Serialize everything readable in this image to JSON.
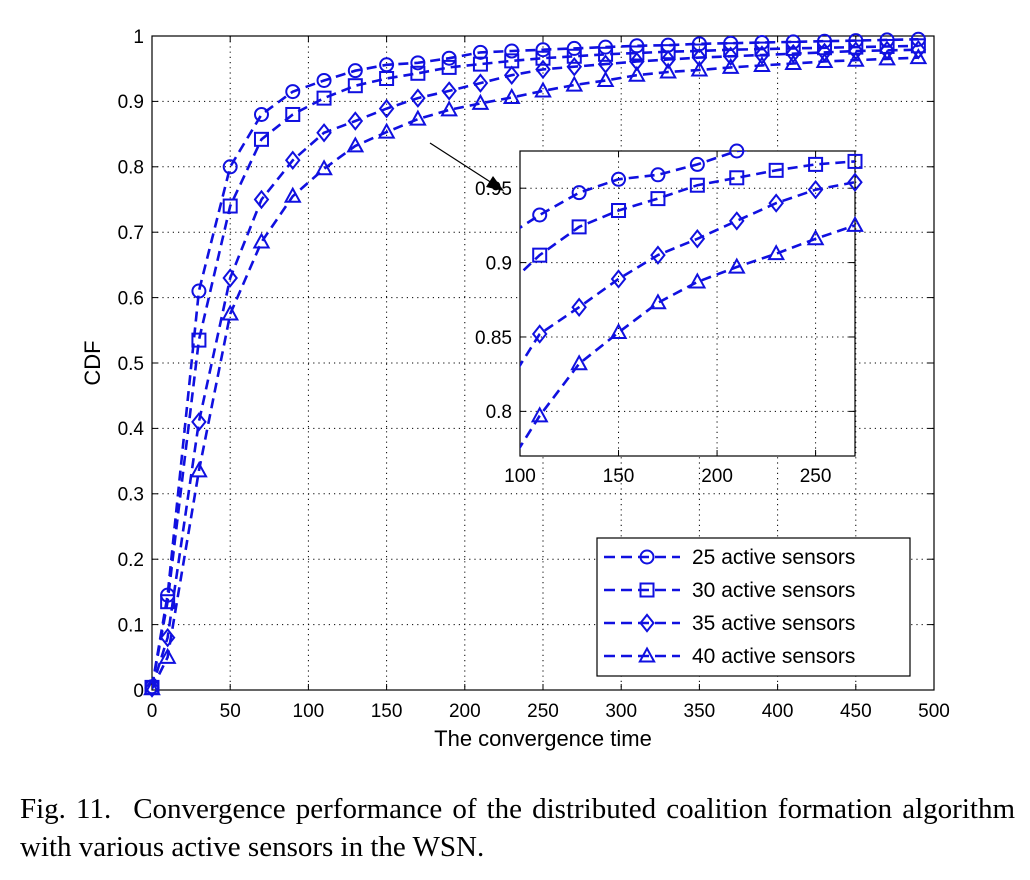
{
  "chart_data": [
    {
      "type": "line",
      "title": "",
      "xlabel": "The convergence time",
      "ylabel": "CDF",
      "xlim": [
        0,
        500
      ],
      "ylim": [
        0,
        1
      ],
      "xticks": [
        0,
        50,
        100,
        150,
        200,
        250,
        300,
        350,
        400,
        450,
        500
      ],
      "yticks": [
        0,
        0.1,
        0.2,
        0.3,
        0.4,
        0.5,
        0.6,
        0.7,
        0.8,
        0.9,
        1
      ],
      "xtick_labels": [
        "0",
        "50",
        "100",
        "150",
        "200",
        "250",
        "300",
        "350",
        "400",
        "450",
        "500"
      ],
      "ytick_labels": [
        "0",
        "0.1",
        "0.2",
        "0.3",
        "0.4",
        "0.5",
        "0.6",
        "0.7",
        "0.8",
        "0.9",
        "1"
      ],
      "grid": true,
      "legend_position": "bottom-right",
      "line_color": "#1010e0",
      "line_style": "dashed",
      "series": [
        {
          "name": "25 active sensors",
          "marker": "circle",
          "x": [
            0,
            10,
            30,
            50,
            70,
            90,
            110,
            130,
            150,
            170,
            190,
            210,
            230,
            250,
            270,
            290,
            310,
            330,
            350,
            370,
            390,
            410,
            430,
            450,
            470,
            490
          ],
          "y": [
            0.005,
            0.145,
            0.61,
            0.8,
            0.88,
            0.915,
            0.932,
            0.947,
            0.956,
            0.959,
            0.966,
            0.975,
            0.977,
            0.979,
            0.981,
            0.983,
            0.985,
            0.986,
            0.988,
            0.989,
            0.99,
            0.991,
            0.992,
            0.993,
            0.994,
            0.995
          ]
        },
        {
          "name": "30 active sensors",
          "marker": "square",
          "x": [
            0,
            10,
            30,
            50,
            70,
            90,
            110,
            130,
            150,
            170,
            190,
            210,
            230,
            250,
            270,
            290,
            310,
            330,
            350,
            370,
            390,
            410,
            430,
            450,
            470,
            490
          ],
          "y": [
            0.004,
            0.135,
            0.535,
            0.74,
            0.842,
            0.88,
            0.905,
            0.924,
            0.935,
            0.943,
            0.952,
            0.957,
            0.962,
            0.966,
            0.969,
            0.972,
            0.974,
            0.976,
            0.977,
            0.979,
            0.98,
            0.981,
            0.982,
            0.983,
            0.984,
            0.985
          ]
        },
        {
          "name": "35 active sensors",
          "marker": "diamond",
          "x": [
            0,
            10,
            30,
            50,
            70,
            90,
            110,
            130,
            150,
            170,
            190,
            210,
            230,
            250,
            270,
            290,
            310,
            330,
            350,
            370,
            390,
            410,
            430,
            450,
            470,
            490
          ],
          "y": [
            0.003,
            0.08,
            0.41,
            0.63,
            0.75,
            0.81,
            0.852,
            0.87,
            0.889,
            0.905,
            0.916,
            0.928,
            0.94,
            0.949,
            0.953,
            0.957,
            0.961,
            0.964,
            0.967,
            0.969,
            0.971,
            0.973,
            0.975,
            0.977,
            0.978,
            0.979
          ]
        },
        {
          "name": "40 active sensors",
          "marker": "triangle",
          "x": [
            0,
            10,
            30,
            50,
            70,
            90,
            110,
            130,
            150,
            170,
            190,
            210,
            230,
            250,
            270,
            290,
            310,
            330,
            350,
            370,
            390,
            410,
            430,
            450,
            470,
            490
          ],
          "y": [
            0.002,
            0.05,
            0.335,
            0.575,
            0.685,
            0.755,
            0.797,
            0.832,
            0.853,
            0.873,
            0.887,
            0.897,
            0.906,
            0.916,
            0.925,
            0.932,
            0.94,
            0.945,
            0.948,
            0.952,
            0.955,
            0.958,
            0.961,
            0.963,
            0.965,
            0.967
          ]
        }
      ]
    },
    {
      "type": "line",
      "title": "",
      "xlabel": "",
      "ylabel": "",
      "xlim": [
        100,
        270
      ],
      "ylim": [
        0.77,
        0.975
      ],
      "xticks": [
        100,
        150,
        200,
        250
      ],
      "yticks": [
        0.8,
        0.85,
        0.9,
        0.95
      ],
      "xtick_labels": [
        "100",
        "150",
        "200",
        "250"
      ],
      "ytick_labels": [
        "0.8",
        "0.85",
        "0.9",
        "0.95"
      ],
      "grid": true,
      "line_color": "#1010e0",
      "line_style": "dashed",
      "series": [
        {
          "name": "25 active sensors",
          "marker": "circle",
          "x": [
            90,
            110,
            130,
            150,
            170,
            190,
            210,
            230,
            250,
            270
          ],
          "y": [
            0.915,
            0.932,
            0.947,
            0.956,
            0.959,
            0.966,
            0.975,
            0.977,
            0.979,
            0.979
          ]
        },
        {
          "name": "30 active sensors",
          "marker": "square",
          "x": [
            90,
            110,
            130,
            150,
            170,
            190,
            210,
            230,
            250,
            270
          ],
          "y": [
            0.88,
            0.905,
            0.924,
            0.935,
            0.943,
            0.952,
            0.957,
            0.962,
            0.966,
            0.968
          ]
        },
        {
          "name": "35 active sensors",
          "marker": "diamond",
          "x": [
            90,
            110,
            130,
            150,
            170,
            190,
            210,
            230,
            250,
            270
          ],
          "y": [
            0.81,
            0.852,
            0.87,
            0.889,
            0.905,
            0.916,
            0.928,
            0.94,
            0.949,
            0.954
          ]
        },
        {
          "name": "40 active sensors",
          "marker": "triangle",
          "x": [
            90,
            110,
            130,
            150,
            170,
            190,
            210,
            230,
            250,
            270
          ],
          "y": [
            0.755,
            0.797,
            0.832,
            0.853,
            0.873,
            0.887,
            0.897,
            0.906,
            0.916,
            0.925
          ]
        }
      ]
    }
  ],
  "caption": {
    "label": "Fig. 11.",
    "text": "Convergence performance of the distributed coalition formation algorithm with various active sensors in the WSN."
  }
}
